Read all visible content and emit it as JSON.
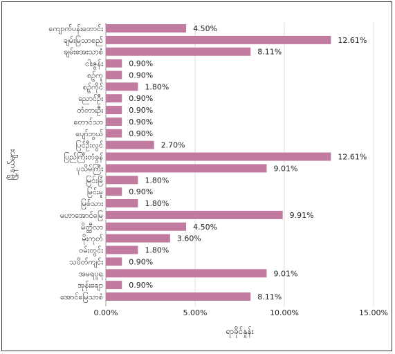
{
  "chart_data": {
    "type": "bar",
    "orientation": "horizontal",
    "xlabel": "ရာခိုင်နှုန်း",
    "ylabel": "မြို့နယ်များ",
    "xlim": [
      0,
      15
    ],
    "x_ticks": [
      "0.00%",
      "5.00%",
      "10.00%",
      "15.00%"
    ],
    "grid": "vertical",
    "bar_color": "#c27ba0",
    "categories": [
      "ကျောက်ပန်းတောင်း",
      "ချမ်းမြသာစည်",
      "ချမ်းအေးသာစံ",
      "ငါးဇွန်း",
      "စဉ့်ကူ",
      "စဉ့်ကိုင်",
      "ညောင်ဦး",
      "တံတားဦး",
      "တောင်သာ",
      "ပျော်ဘွယ်",
      "ပြင်ဦးလွင်",
      "ပြည်ကြီးတံခွန်",
      "ပုသိမ်ကြီး",
      "မြင်းခြံ",
      "မြင်းမူ",
      "မြစ်သား",
      "မဟာအောင်မြေ",
      "မိတ္ထီလာ",
      "မိုးကုတ်",
      "ဝမ်းတွင်း",
      "သပိတ်ကျင်း",
      "အမရပူရ",
      "အုန်းချော",
      "အောင်မြေသာစံ"
    ],
    "values": [
      4.5,
      12.61,
      8.11,
      0.9,
      0.9,
      1.8,
      0.9,
      0.9,
      0.9,
      0.9,
      2.7,
      12.61,
      9.01,
      1.8,
      0.9,
      1.8,
      9.91,
      4.5,
      3.6,
      1.8,
      0.9,
      9.01,
      0.9,
      8.11
    ],
    "value_labels": [
      "4.50%",
      "12.61%",
      "8.11%",
      "0.90%",
      "0.90%",
      "1.80%",
      "0.90%",
      "0.90%",
      "0.90%",
      "0.90%",
      "2.70%",
      "12.61%",
      "9.01%",
      "1.80%",
      "0.90%",
      "1.80%",
      "9.91%",
      "4.50%",
      "3.60%",
      "1.80%",
      "0.90%",
      "9.01%",
      "0.90%",
      "8.11%"
    ]
  }
}
